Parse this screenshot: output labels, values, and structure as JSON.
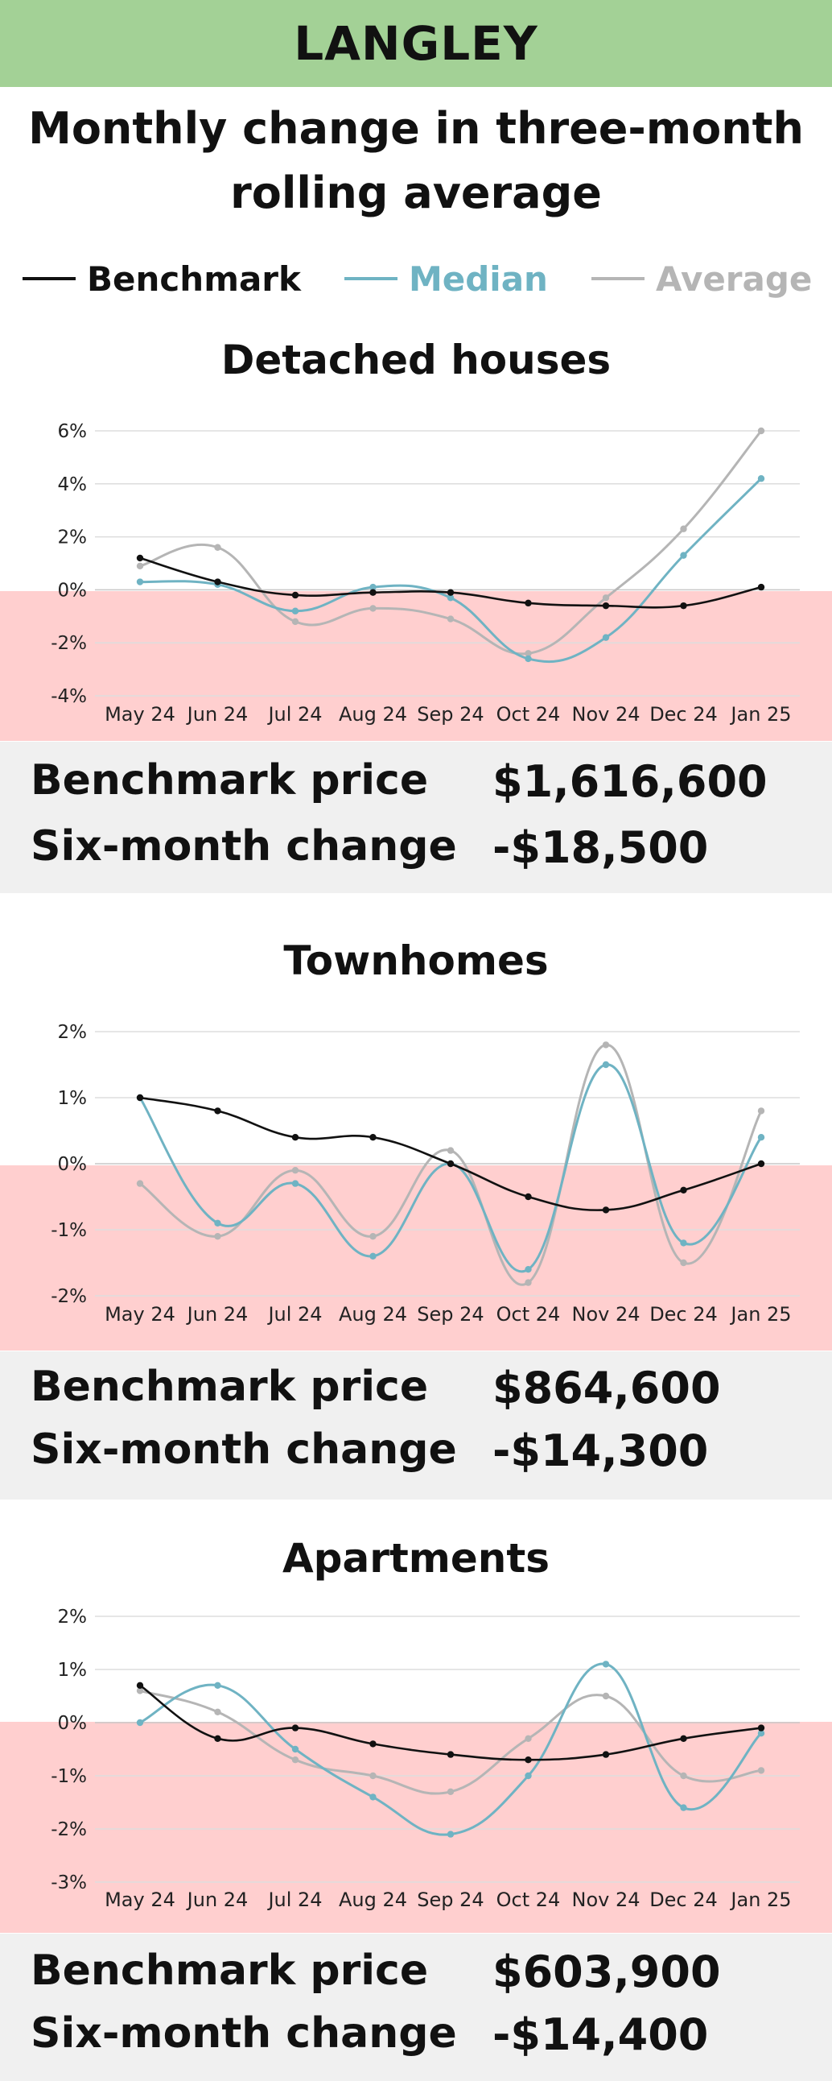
{
  "header": {
    "region": "LANGLEY"
  },
  "subtitle_line1": "Monthly change in three-month",
  "subtitle_line2": "rolling average",
  "legend": [
    {
      "name": "Benchmark",
      "color": "#111111"
    },
    {
      "name": "Median",
      "color": "#6fb3c3"
    },
    {
      "name": "Average",
      "color": "#b5b5b5"
    }
  ],
  "colors": {
    "header_bg": "#a3d196",
    "negative_band": "#ffcfcf",
    "stats_bg": "#f0f0f0",
    "gridline": "#dddddd"
  },
  "chart_data": [
    {
      "type": "line",
      "title": "Detached houses",
      "categories": [
        "May 24",
        "Jun 24",
        "Jul 24",
        "Aug 24",
        "Sep 24",
        "Oct 24",
        "Nov 24",
        "Dec 24",
        "Jan 25"
      ],
      "ylim": [
        -4,
        6
      ],
      "yticks": [
        6,
        4,
        2,
        0,
        -2,
        -4
      ],
      "grid": true,
      "series": [
        {
          "name": "Benchmark",
          "values": [
            1.2,
            0.3,
            -0.2,
            -0.1,
            -0.1,
            -0.5,
            -0.6,
            -0.6,
            0.1
          ]
        },
        {
          "name": "Median",
          "values": [
            0.3,
            0.2,
            -0.8,
            0.1,
            -0.3,
            -2.6,
            -1.8,
            1.3,
            4.2
          ]
        },
        {
          "name": "Average",
          "values": [
            0.9,
            1.6,
            -1.2,
            -0.7,
            -1.1,
            -2.4,
            -0.3,
            2.3,
            6.0
          ]
        }
      ],
      "stats": {
        "benchmark_label": "Benchmark price",
        "benchmark_value": "$1,616,600",
        "change_label": "Six-month change",
        "change_value": "-$18,500"
      }
    },
    {
      "type": "line",
      "title": "Townhomes",
      "categories": [
        "May 24",
        "Jun 24",
        "Jul 24",
        "Aug 24",
        "Sep 24",
        "Oct 24",
        "Nov 24",
        "Dec 24",
        "Jan 25"
      ],
      "ylim": [
        -2,
        2
      ],
      "yticks": [
        2,
        1,
        0,
        -1,
        -2
      ],
      "grid": true,
      "series": [
        {
          "name": "Benchmark",
          "values": [
            1.0,
            0.8,
            0.4,
            0.4,
            0.0,
            -0.5,
            -0.7,
            -0.4,
            0.0
          ]
        },
        {
          "name": "Median",
          "values": [
            1.0,
            -0.9,
            -0.3,
            -1.4,
            0.0,
            -1.6,
            1.5,
            -1.2,
            0.4
          ]
        },
        {
          "name": "Average",
          "values": [
            -0.3,
            -1.1,
            -0.1,
            -1.1,
            0.2,
            -1.8,
            1.8,
            -1.5,
            0.8
          ]
        }
      ],
      "stats": {
        "benchmark_label": "Benchmark price",
        "benchmark_value": "$864,600",
        "change_label": "Six-month change",
        "change_value": "-$14,300"
      }
    },
    {
      "type": "line",
      "title": "Apartments",
      "categories": [
        "May 24",
        "Jun 24",
        "Jul 24",
        "Aug 24",
        "Sep 24",
        "Oct 24",
        "Nov 24",
        "Dec 24",
        "Jan 25"
      ],
      "ylim": [
        -3,
        2
      ],
      "yticks": [
        2,
        1,
        0,
        -1,
        -2,
        -3
      ],
      "grid": true,
      "series": [
        {
          "name": "Benchmark",
          "values": [
            0.7,
            -0.3,
            -0.1,
            -0.4,
            -0.6,
            -0.7,
            -0.6,
            -0.3,
            -0.1
          ]
        },
        {
          "name": "Median",
          "values": [
            0.0,
            0.7,
            -0.5,
            -1.4,
            -2.1,
            -1.0,
            1.1,
            -1.6,
            -0.2
          ]
        },
        {
          "name": "Average",
          "values": [
            0.6,
            0.2,
            -0.7,
            -1.0,
            -1.3,
            -0.3,
            0.5,
            -1.0,
            -0.9
          ]
        }
      ],
      "stats": {
        "benchmark_label": "Benchmark price",
        "benchmark_value": "$603,900",
        "change_label": "Six-month change",
        "change_value": "-$14,400"
      }
    }
  ]
}
